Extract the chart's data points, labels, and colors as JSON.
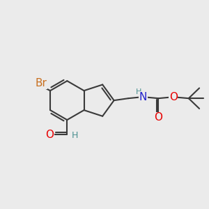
{
  "background_color": "#ebebeb",
  "bond_color": "#3a3a3a",
  "bond_width": 1.5,
  "atom_colors": {
    "Br": "#c87020",
    "O": "#e80000",
    "N": "#2020cc",
    "H": "#4a9090",
    "C": "#3a3a3a"
  },
  "font_size_atom": 11,
  "font_size_small": 9,
  "font_size_h": 8
}
